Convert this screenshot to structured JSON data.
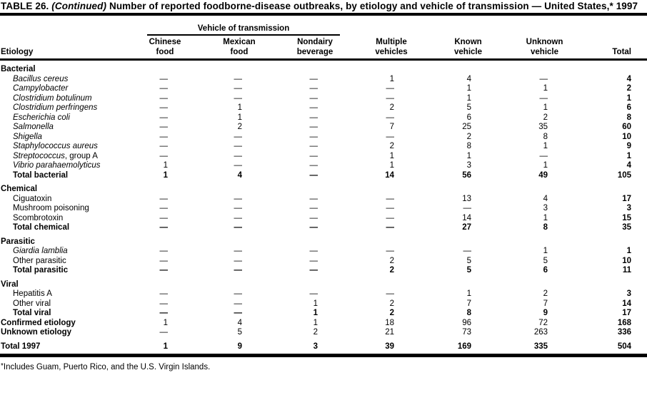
{
  "colors": {
    "ink": "#000000",
    "paper": "#ffffff"
  },
  "title": {
    "prefix": "TABLE 26.",
    "continued": "(Continued)",
    "rest": "Number of reported foodborne-disease outbreaks, by etiology and vehicle of transmission — United States,* 1997"
  },
  "table": {
    "etiology_label": "Etiology",
    "spanner": "Vehicle of transmission",
    "columns": [
      {
        "line1": "Chinese",
        "line2": "food"
      },
      {
        "line1": "Mexican",
        "line2": "food"
      },
      {
        "line1": "Nondairy",
        "line2": "beverage"
      },
      {
        "line1": "Multiple",
        "line2": "vehicles"
      },
      {
        "line1": "Known",
        "line2": "vehicle"
      },
      {
        "line1": "Unknown",
        "line2": "vehicle"
      },
      {
        "line1": "",
        "line2": "Total"
      }
    ],
    "rows": [
      {
        "type": "section",
        "label": "Bacterial"
      },
      {
        "type": "item",
        "italic": true,
        "label": "Bacillus cereus",
        "values": [
          "—",
          "—",
          "—",
          "1",
          "4",
          "—",
          "4"
        ]
      },
      {
        "type": "item",
        "italic": true,
        "label": "Campylobacter",
        "values": [
          "—",
          "—",
          "—",
          "—",
          "1",
          "1",
          "2"
        ]
      },
      {
        "type": "item",
        "italic": true,
        "label": "Clostridium botulinum",
        "values": [
          "—",
          "—",
          "—",
          "—",
          "1",
          "—",
          "1"
        ]
      },
      {
        "type": "item",
        "italic": true,
        "label": "Clostridium perfringens",
        "values": [
          "—",
          "1",
          "—",
          "2",
          "5",
          "1",
          "6"
        ]
      },
      {
        "type": "item",
        "italic": true,
        "label": "Escherichia coli",
        "values": [
          "—",
          "1",
          "—",
          "—",
          "6",
          "2",
          "8"
        ]
      },
      {
        "type": "item",
        "italic": true,
        "label": "Salmonella",
        "values": [
          "—",
          "2",
          "—",
          "7",
          "25",
          "35",
          "60"
        ]
      },
      {
        "type": "item",
        "italic": true,
        "label": "Shigella",
        "values": [
          "—",
          "—",
          "—",
          "—",
          "2",
          "8",
          "10"
        ]
      },
      {
        "type": "item",
        "italic": true,
        "label": "Staphylococcus aureus",
        "values": [
          "—",
          "—",
          "—",
          "2",
          "8",
          "1",
          "9"
        ]
      },
      {
        "type": "item",
        "italic": true,
        "label": "Streptococcus",
        "suffix": ", group A",
        "values": [
          "—",
          "—",
          "—",
          "1",
          "1",
          "—",
          "1"
        ]
      },
      {
        "type": "item",
        "italic": true,
        "label": "Vibrio parahaemolyticus",
        "values": [
          "1",
          "—",
          "—",
          "1",
          "3",
          "1",
          "4"
        ]
      },
      {
        "type": "total",
        "label": "Total bacterial",
        "values": [
          "1",
          "4",
          "—",
          "14",
          "56",
          "49",
          "105"
        ]
      },
      {
        "type": "section",
        "label": "Chemical"
      },
      {
        "type": "item",
        "italic": false,
        "label": "Ciguatoxin",
        "values": [
          "—",
          "—",
          "—",
          "—",
          "13",
          "4",
          "17"
        ]
      },
      {
        "type": "item",
        "italic": false,
        "label": "Mushroom poisoning",
        "values": [
          "—",
          "—",
          "—",
          "—",
          "—",
          "3",
          "3"
        ]
      },
      {
        "type": "item",
        "italic": false,
        "label": "Scombrotoxin",
        "values": [
          "—",
          "—",
          "—",
          "—",
          "14",
          "1",
          "15"
        ]
      },
      {
        "type": "total",
        "label": "Total chemical",
        "values": [
          "—",
          "—",
          "—",
          "—",
          "27",
          "8",
          "35"
        ]
      },
      {
        "type": "section",
        "label": "Parasitic"
      },
      {
        "type": "item",
        "italic": true,
        "label": "Giardia lamblia",
        "values": [
          "—",
          "—",
          "—",
          "—",
          "—",
          "1",
          "1"
        ]
      },
      {
        "type": "item",
        "italic": false,
        "label": "Other parasitic",
        "values": [
          "—",
          "—",
          "—",
          "2",
          "5",
          "5",
          "10"
        ]
      },
      {
        "type": "total",
        "label": "Total parasitic",
        "values": [
          "—",
          "—",
          "—",
          "2",
          "5",
          "6",
          "11"
        ]
      },
      {
        "type": "section",
        "label": "Viral"
      },
      {
        "type": "item",
        "italic": false,
        "label": "Hepatitis A",
        "values": [
          "—",
          "—",
          "—",
          "—",
          "1",
          "2",
          "3"
        ]
      },
      {
        "type": "item",
        "italic": false,
        "label": "Other viral",
        "values": [
          "—",
          "—",
          "1",
          "2",
          "7",
          "7",
          "14"
        ]
      },
      {
        "type": "total",
        "label": "Total viral",
        "values": [
          "—",
          "—",
          "1",
          "2",
          "8",
          "9",
          "17"
        ]
      },
      {
        "type": "summary",
        "label": "Confirmed etiology",
        "values": [
          "1",
          "4",
          "1",
          "18",
          "96",
          "72",
          "168"
        ]
      },
      {
        "type": "summary",
        "label": "Unknown etiology",
        "values": [
          "—",
          "5",
          "2",
          "21",
          "73",
          "263",
          "336"
        ]
      },
      {
        "type": "grand",
        "label": "Total 1997",
        "values": [
          "1",
          "9",
          "3",
          "39",
          "169",
          "335",
          "504"
        ]
      }
    ]
  },
  "footnote": {
    "marker": "*",
    "text": "Includes Guam, Puerto Rico, and the U.S. Virgin Islands."
  }
}
